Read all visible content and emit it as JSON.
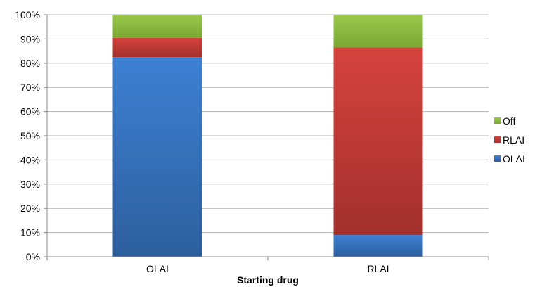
{
  "chart_data": {
    "type": "bar",
    "stacked": true,
    "percent": true,
    "categories": [
      "OLAI",
      "RLAI"
    ],
    "series": [
      {
        "name": "OLAI",
        "values": [
          82.5,
          9.0
        ],
        "color": "#3a79c9"
      },
      {
        "name": "RLAI",
        "values": [
          8.0,
          77.5
        ],
        "color": "#cc3a35"
      },
      {
        "name": "Off",
        "values": [
          9.5,
          13.5
        ],
        "color": "#8dbf3e"
      }
    ],
    "title": "",
    "xlabel": "Starting drug",
    "ylabel": "",
    "ylim": [
      0,
      100
    ],
    "yticks": [
      "0%",
      "10%",
      "20%",
      "30%",
      "40%",
      "50%",
      "60%",
      "70%",
      "80%",
      "90%",
      "100%"
    ],
    "grid": true,
    "legend": {
      "position": "right",
      "order": [
        "Off",
        "RLAI",
        "OLAI"
      ]
    }
  }
}
